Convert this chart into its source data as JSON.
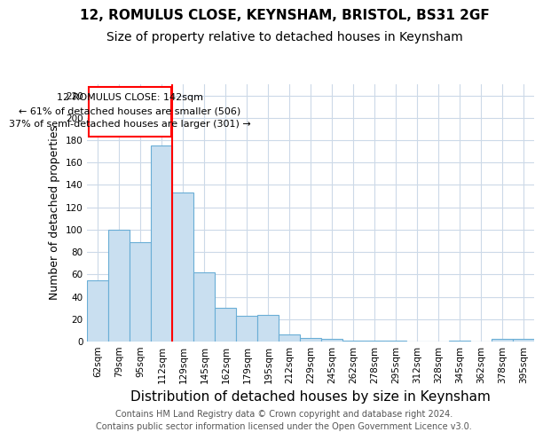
{
  "title_line1": "12, ROMULUS CLOSE, KEYNSHAM, BRISTOL, BS31 2GF",
  "title_line2": "Size of property relative to detached houses in Keynsham",
  "xlabel": "Distribution of detached houses by size in Keynsham",
  "ylabel": "Number of detached properties",
  "bar_labels": [
    "62sqm",
    "79sqm",
    "95sqm",
    "112sqm",
    "129sqm",
    "145sqm",
    "162sqm",
    "179sqm",
    "195sqm",
    "212sqm",
    "229sqm",
    "245sqm",
    "262sqm",
    "278sqm",
    "295sqm",
    "312sqm",
    "328sqm",
    "345sqm",
    "362sqm",
    "378sqm",
    "395sqm"
  ],
  "bar_values": [
    55,
    100,
    89,
    175,
    133,
    62,
    30,
    23,
    24,
    6,
    3,
    2,
    1,
    1,
    1,
    0,
    0,
    1,
    0,
    2,
    2
  ],
  "bar_color": "#c9dff0",
  "bar_edge_color": "#6aaed6",
  "ylim": [
    0,
    230
  ],
  "yticks": [
    0,
    20,
    40,
    60,
    80,
    100,
    120,
    140,
    160,
    180,
    200,
    220
  ],
  "vline_x_index": 3.5,
  "annotation_text_line1": "12 ROMULUS CLOSE: 142sqm",
  "annotation_text_line2": "← 61% of detached houses are smaller (506)",
  "annotation_text_line3": "37% of semi-detached houses are larger (301) →",
  "annotation_box_color": "white",
  "annotation_box_edge_color": "red",
  "vline_color": "red",
  "footnote_line1": "Contains HM Land Registry data © Crown copyright and database right 2024.",
  "footnote_line2": "Contains public sector information licensed under the Open Government Licence v3.0.",
  "bg_color": "white",
  "grid_color": "#ccd9e8",
  "title_fontsize": 11,
  "subtitle_fontsize": 10,
  "xlabel_fontsize": 11,
  "ylabel_fontsize": 9,
  "tick_fontsize": 7.5,
  "annotation_fontsize": 8,
  "footnote_fontsize": 7
}
